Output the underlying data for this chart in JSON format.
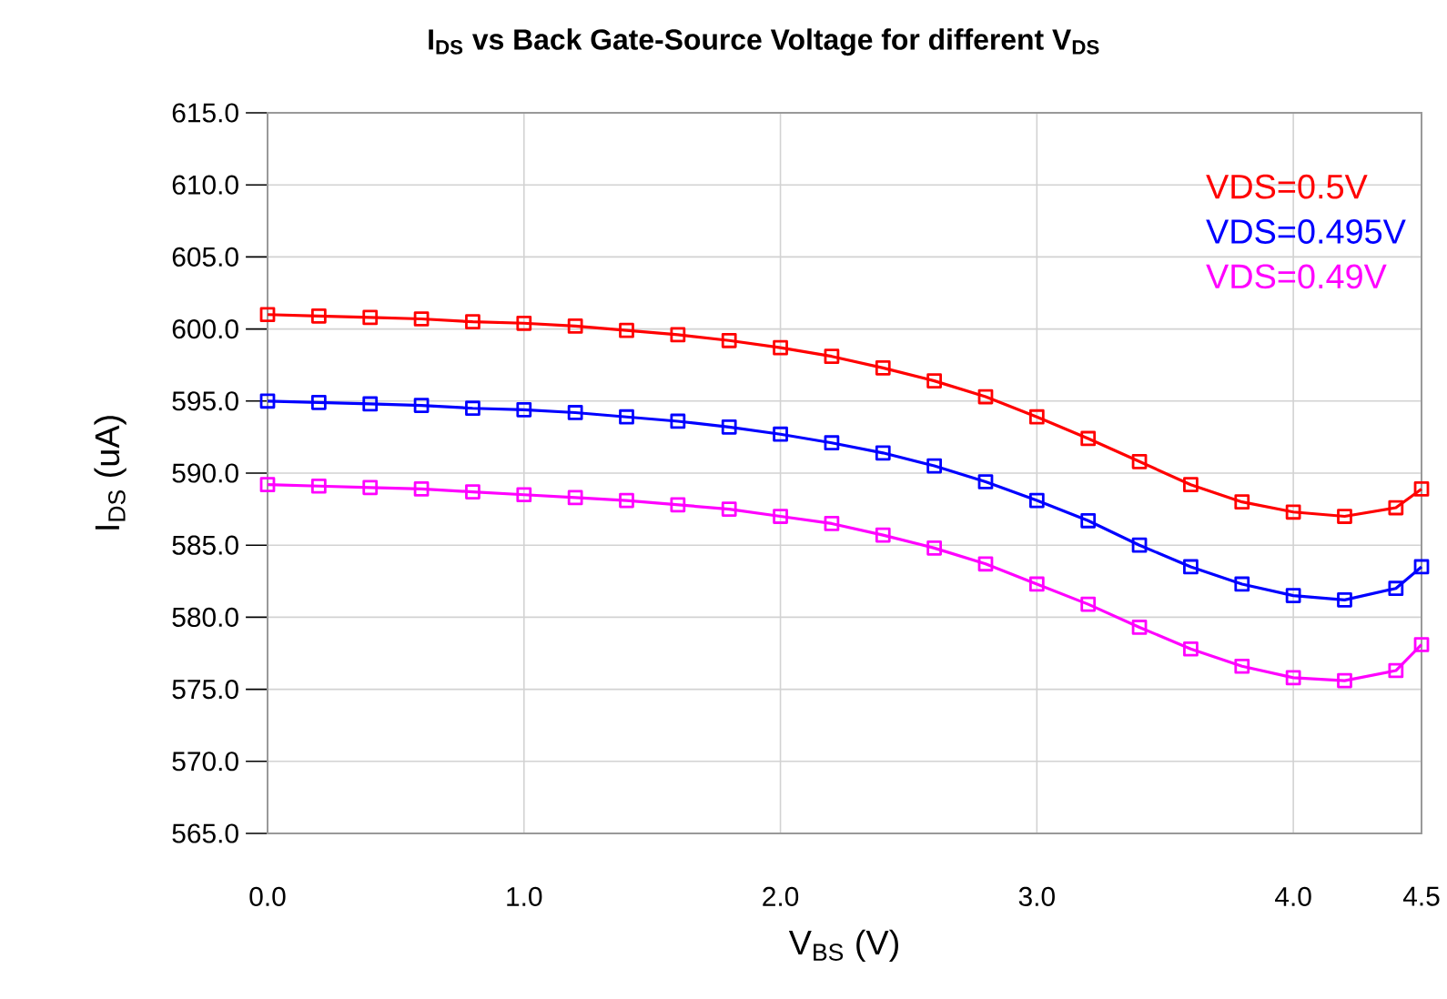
{
  "chart_data": {
    "type": "line",
    "title": "I$_{DS}$ vs Back Gate-Source Voltage for different V$_{DS}$",
    "xlabel": "V$_{BS}$  (V)",
    "ylabel": "I$_{DS}$  (uA)",
    "x": [
      0,
      0.2,
      0.4,
      0.6,
      0.8,
      1.0,
      1.2,
      1.4,
      1.6,
      1.8,
      2.0,
      2.2,
      2.4,
      2.6,
      2.8,
      3.0,
      3.2,
      3.4,
      3.6,
      3.8,
      4.0,
      4.2,
      4.4,
      4.5
    ],
    "series": [
      {
        "name": "VDS=0.5V",
        "color": "#ff0000",
        "values": [
          601.0,
          600.9,
          600.8,
          600.7,
          600.5,
          600.4,
          600.2,
          599.9,
          599.6,
          599.2,
          598.7,
          598.1,
          597.3,
          596.4,
          595.3,
          593.9,
          592.4,
          590.8,
          589.2,
          588.0,
          587.3,
          587.0,
          587.6,
          588.9
        ]
      },
      {
        "name": "VDS=0.495V",
        "color": "#0000ff",
        "values": [
          595.0,
          594.9,
          594.8,
          594.7,
          594.5,
          594.4,
          594.2,
          593.9,
          593.6,
          593.2,
          592.7,
          592.1,
          591.4,
          590.5,
          589.4,
          588.1,
          586.7,
          585.0,
          583.5,
          582.3,
          581.5,
          581.2,
          582.0,
          583.5
        ]
      },
      {
        "name": "VDS=0.49V",
        "color": "#ff00ff",
        "values": [
          589.2,
          589.1,
          589.0,
          588.9,
          588.7,
          588.5,
          588.3,
          588.1,
          587.8,
          587.5,
          587.0,
          586.5,
          585.7,
          584.8,
          583.7,
          582.3,
          580.9,
          579.3,
          577.8,
          576.6,
          575.8,
          575.6,
          576.3,
          578.1
        ]
      }
    ],
    "xlim": [
      0,
      4.5
    ],
    "ylim": [
      565,
      615
    ],
    "xticks": [
      {
        "value": 0,
        "label": "0.0"
      },
      {
        "value": 1,
        "label": "1.0"
      },
      {
        "value": 2,
        "label": "2.0"
      },
      {
        "value": 3,
        "label": "3.0"
      },
      {
        "value": 4,
        "label": "4.0"
      },
      {
        "value": 4.5,
        "label": "4.5"
      }
    ],
    "yticks": [
      {
        "value": 565,
        "label": "565.0"
      },
      {
        "value": 570,
        "label": "570.0"
      },
      {
        "value": 575,
        "label": "575.0"
      },
      {
        "value": 580,
        "label": "580.0"
      },
      {
        "value": 585,
        "label": "585.0"
      },
      {
        "value": 590,
        "label": "590.0"
      },
      {
        "value": 595,
        "label": "595.0"
      },
      {
        "value": 600,
        "label": "600.0"
      },
      {
        "value": 605,
        "label": "605.0"
      },
      {
        "value": 610,
        "label": "610.0"
      },
      {
        "value": 615,
        "label": "615.0"
      }
    ],
    "grid": true,
    "legend": "top right",
    "marker": "square",
    "line_style": "solid"
  }
}
